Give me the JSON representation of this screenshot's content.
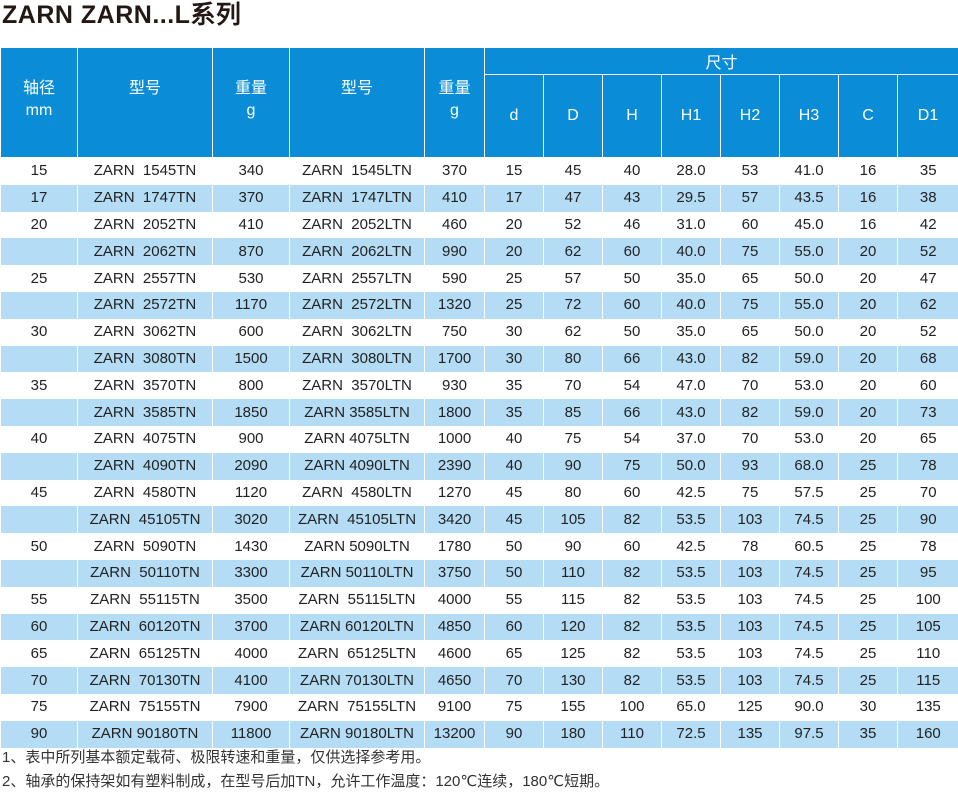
{
  "title": "ZARN  ZARN...L系列",
  "headers": {
    "shaft": "轴径",
    "shaft_unit": "mm",
    "model": "型号",
    "weight": "重量",
    "weight_unit": "g",
    "model_l": "型号",
    "weight_l": "重量",
    "weight_l_unit": "g",
    "dims": "尺寸",
    "dim_cols": [
      "d",
      "D",
      "H",
      "H1",
      "H2",
      "H3",
      "C",
      "D1"
    ]
  },
  "rows": [
    [
      "15",
      "ZARN  1545TN",
      "340",
      "ZARN  1545LTN",
      "370",
      "15",
      "45",
      "40",
      "28.0",
      "53",
      "41.0",
      "16",
      "35"
    ],
    [
      "17",
      "ZARN  1747TN",
      "370",
      "ZARN  1747LTN",
      "410",
      "17",
      "47",
      "43",
      "29.5",
      "57",
      "43.5",
      "16",
      "38"
    ],
    [
      "20",
      "ZARN  2052TN",
      "410",
      "ZARN  2052LTN",
      "460",
      "20",
      "52",
      "46",
      "31.0",
      "60",
      "45.0",
      "16",
      "42"
    ],
    [
      "",
      "ZARN  2062TN",
      "870",
      "ZARN  2062LTN",
      "990",
      "20",
      "62",
      "60",
      "40.0",
      "75",
      "55.0",
      "20",
      "52"
    ],
    [
      "25",
      "ZARN  2557TN",
      "530",
      "ZARN  2557LTN",
      "590",
      "25",
      "57",
      "50",
      "35.0",
      "65",
      "50.0",
      "20",
      "47"
    ],
    [
      "",
      "ZARN  2572TN",
      "1170",
      "ZARN  2572LTN",
      "1320",
      "25",
      "72",
      "60",
      "40.0",
      "75",
      "55.0",
      "20",
      "62"
    ],
    [
      "30",
      "ZARN  3062TN",
      "600",
      "ZARN  3062LTN",
      "750",
      "30",
      "62",
      "50",
      "35.0",
      "65",
      "50.0",
      "20",
      "52"
    ],
    [
      "",
      "ZARN  3080TN",
      "1500",
      "ZARN  3080LTN",
      "1700",
      "30",
      "80",
      "66",
      "43.0",
      "82",
      "59.0",
      "20",
      "68"
    ],
    [
      "35",
      "ZARN  3570TN",
      "800",
      "ZARN  3570LTN",
      "930",
      "35",
      "70",
      "54",
      "47.0",
      "70",
      "53.0",
      "20",
      "60"
    ],
    [
      "",
      "ZARN  3585TN",
      "1850",
      "ZARN 3585LTN",
      "1800",
      "35",
      "85",
      "66",
      "43.0",
      "82",
      "59.0",
      "20",
      "73"
    ],
    [
      "40",
      "ZARN  4075TN",
      "900",
      "ZARN 4075LTN",
      "1000",
      "40",
      "75",
      "54",
      "37.0",
      "70",
      "53.0",
      "20",
      "65"
    ],
    [
      "",
      "ZARN  4090TN",
      "2090",
      "ZARN 4090LTN",
      "2390",
      "40",
      "90",
      "75",
      "50.0",
      "93",
      "68.0",
      "25",
      "78"
    ],
    [
      "45",
      "ZARN  4580TN",
      "1120",
      "ZARN  4580LTN",
      "1270",
      "45",
      "80",
      "60",
      "42.5",
      "75",
      "57.5",
      "25",
      "70"
    ],
    [
      "",
      "ZARN  45105TN",
      "3020",
      "ZARN  45105LTN",
      "3420",
      "45",
      "105",
      "82",
      "53.5",
      "103",
      "74.5",
      "25",
      "90"
    ],
    [
      "50",
      "ZARN  5090TN",
      "1430",
      "ZARN 5090LTN",
      "1780",
      "50",
      "90",
      "60",
      "42.5",
      "78",
      "60.5",
      "25",
      "78"
    ],
    [
      "",
      "ZARN  50110TN",
      "3300",
      "ZARN 50110LTN",
      "3750",
      "50",
      "110",
      "82",
      "53.5",
      "103",
      "74.5",
      "25",
      "95"
    ],
    [
      "55",
      "ZARN  55115TN",
      "3500",
      "ZARN  55115LTN",
      "4000",
      "55",
      "115",
      "82",
      "53.5",
      "103",
      "74.5",
      "25",
      "100"
    ],
    [
      "60",
      "ZARN  60120TN",
      "3700",
      "ZARN 60120LTN",
      "4850",
      "60",
      "120",
      "82",
      "53.5",
      "103",
      "74.5",
      "25",
      "105"
    ],
    [
      "65",
      "ZARN  65125TN",
      "4000",
      "ZARN  65125LTN",
      "4600",
      "65",
      "125",
      "82",
      "53.5",
      "103",
      "74.5",
      "25",
      "110"
    ],
    [
      "70",
      "ZARN  70130TN",
      "4100",
      "ZARN 70130LTN",
      "4650",
      "70",
      "130",
      "82",
      "53.5",
      "103",
      "74.5",
      "25",
      "115"
    ],
    [
      "75",
      "ZARN  75155TN",
      "7900",
      "ZARN  75155LTN",
      "9100",
      "75",
      "155",
      "100",
      "65.0",
      "125",
      "90.0",
      "30",
      "135"
    ],
    [
      "90",
      "ZARN 90180TN",
      "11800",
      "ZARN 90180LTN",
      "13200",
      "90",
      "180",
      "110",
      "72.5",
      "135",
      "97.5",
      "35",
      "160"
    ]
  ],
  "notes": [
    "1、表中所列基本额定载荷、极限转速和重量，仅供选择参考用。",
    "2、轴承的保持架如有塑料制成，在型号后加TN，允许工作温度：120℃连续，180℃短期。"
  ],
  "colors": {
    "header": "#0a8cd6",
    "alt_row": "#b4dcf5"
  }
}
